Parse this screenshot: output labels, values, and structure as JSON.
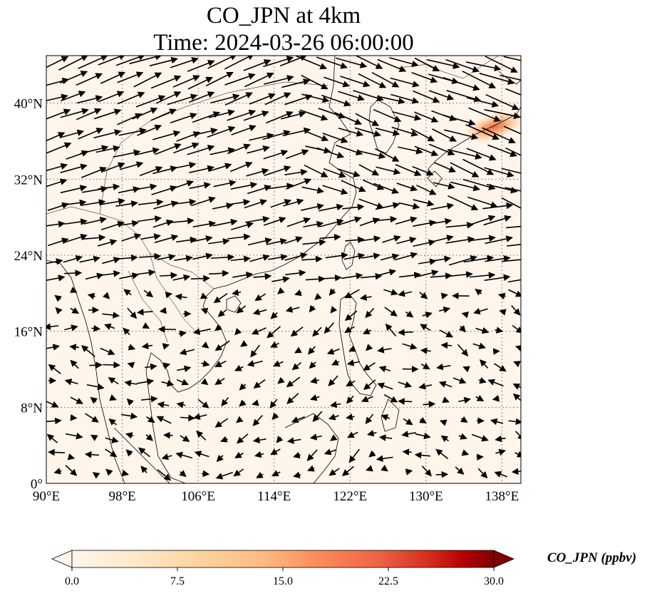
{
  "title": {
    "line1": "CO_JPN at 4km",
    "line2": "Time: 2024-03-26 06:00:00"
  },
  "map": {
    "lon_labels": [
      "90°E",
      "98°E",
      "106°E",
      "114°E",
      "122°E",
      "130°E",
      "138°E"
    ],
    "lat_labels": [
      "0°",
      "8°N",
      "16°N",
      "24°N",
      "32°N",
      "40°N"
    ],
    "lon_ticks": [
      90,
      98,
      106,
      114,
      122,
      130,
      138
    ],
    "lat_ticks": [
      0,
      8,
      16,
      24,
      32,
      40
    ],
    "lon_range": [
      90,
      140
    ],
    "lat_range": [
      0,
      45
    ],
    "background_color": "#fff5eb",
    "plume": {
      "center_lon": 137.5,
      "center_lat": 37.5,
      "peak_ppbv": 9
    }
  },
  "colorbar": {
    "label": "CO_JPN (ppbv)",
    "tick_labels": [
      "0.0",
      "7.5",
      "15.0",
      "22.5",
      "30.0"
    ],
    "range": [
      0,
      30
    ],
    "extend": "both",
    "colormap": "OrRd"
  },
  "chart_data": {
    "type": "heatmap",
    "title": "CO_JPN at 4km\nTime: 2024-03-26 06:00:00",
    "variable": "CO_JPN (ppbv)",
    "vrange": [
      0,
      30
    ],
    "overlay": "wind vectors (black arrows)",
    "xlim": [
      90,
      140
    ],
    "ylim": [
      0,
      45
    ]
  }
}
